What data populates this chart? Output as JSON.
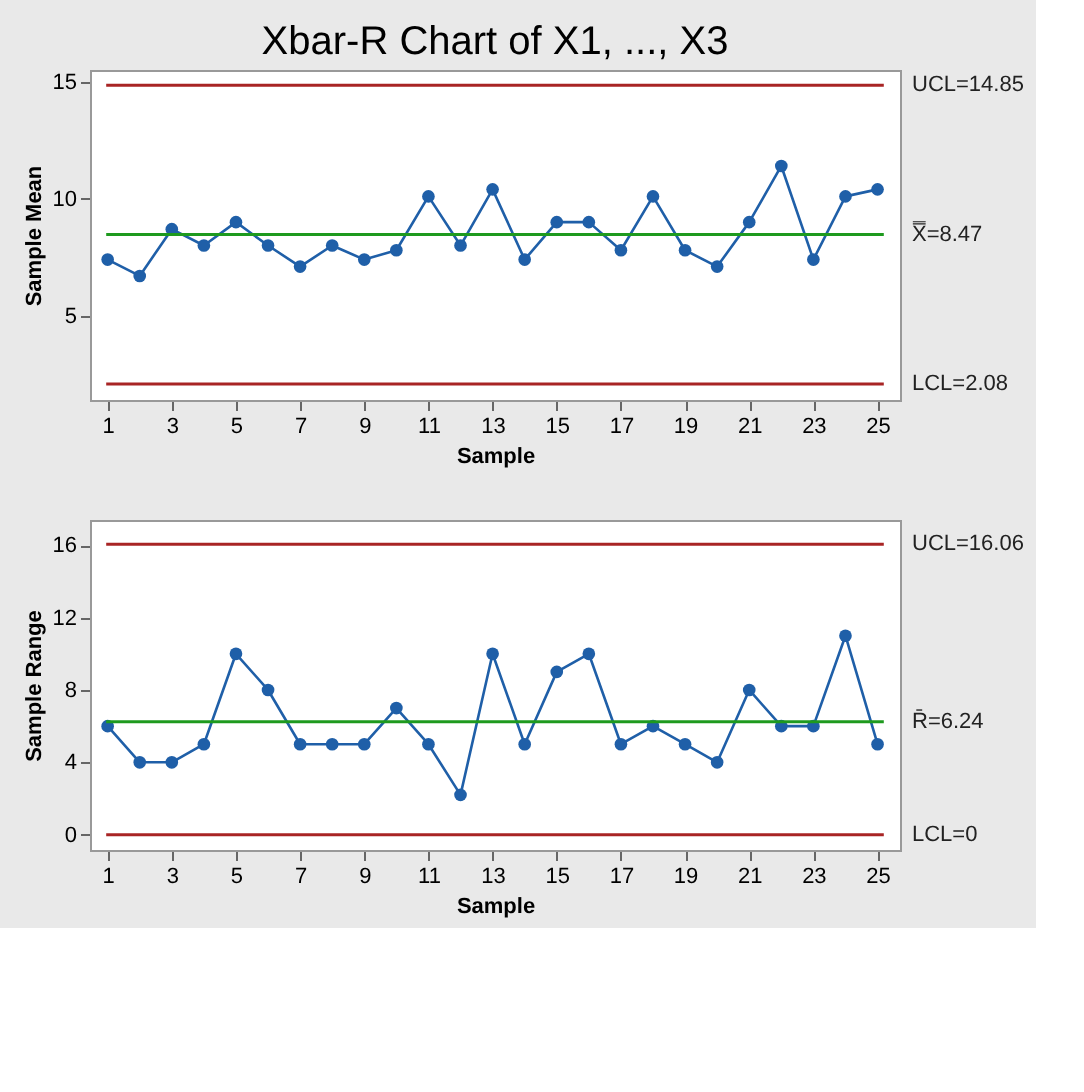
{
  "chart_data": [
    {
      "type": "line",
      "title": "Xbar-R Chart of X1, ..., X3",
      "xlabel": "Sample",
      "ylabel": "Sample Mean",
      "x": [
        1,
        2,
        3,
        4,
        5,
        6,
        7,
        8,
        9,
        10,
        11,
        12,
        13,
        14,
        15,
        16,
        17,
        18,
        19,
        20,
        21,
        22,
        23,
        24,
        25
      ],
      "series": [
        {
          "color": "#1f5fa8",
          "values": [
            7.4,
            6.7,
            8.7,
            8.0,
            9.0,
            8.0,
            7.1,
            8.0,
            7.4,
            7.8,
            10.1,
            8.0,
            10.4,
            7.4,
            9.0,
            9.0,
            7.8,
            10.1,
            7.8,
            7.1,
            9.0,
            11.4,
            7.4,
            10.1,
            10.4
          ]
        }
      ],
      "xlim": [
        0.45,
        25.7
      ],
      "xticks": [
        1,
        3,
        5,
        7,
        9,
        11,
        13,
        15,
        17,
        19,
        21,
        23,
        25
      ],
      "ylim": [
        1.4,
        15.5
      ],
      "yticks": [
        5,
        10,
        15
      ],
      "ref_lines": [
        {
          "axis": "y",
          "value": 14.85,
          "label": "UCL=14.85",
          "color": "#a82424"
        },
        {
          "axis": "y",
          "value": 8.47,
          "label": "X̿=8.47",
          "color": "#1e9a1e"
        },
        {
          "axis": "y",
          "value": 2.08,
          "label": "LCL=2.08",
          "color": "#a82424"
        }
      ],
      "grid": false,
      "marker": "circle",
      "line_style": "solid"
    },
    {
      "type": "line",
      "xlabel": "Sample",
      "ylabel": "Sample Range",
      "x": [
        1,
        2,
        3,
        4,
        5,
        6,
        7,
        8,
        9,
        10,
        11,
        12,
        13,
        14,
        15,
        16,
        17,
        18,
        19,
        20,
        21,
        22,
        23,
        24,
        25
      ],
      "series": [
        {
          "color": "#1f5fa8",
          "values": [
            6,
            4,
            4,
            5,
            10,
            8,
            5,
            5,
            5,
            7,
            5,
            2.2,
            10,
            5,
            9,
            10,
            5,
            6,
            5,
            4,
            8,
            6,
            6,
            11,
            5
          ]
        }
      ],
      "xlim": [
        0.45,
        25.7
      ],
      "xticks": [
        1,
        3,
        5,
        7,
        9,
        11,
        13,
        15,
        17,
        19,
        21,
        23,
        25
      ],
      "ylim": [
        -0.85,
        17.4
      ],
      "yticks": [
        0,
        4,
        8,
        12,
        16
      ],
      "ref_lines": [
        {
          "axis": "y",
          "value": 16.06,
          "label": "UCL=16.06",
          "color": "#a82424"
        },
        {
          "axis": "y",
          "value": 6.24,
          "label": "R̄=6.24",
          "color": "#1e9a1e"
        },
        {
          "axis": "y",
          "value": 0,
          "label": "LCL=0",
          "color": "#a82424"
        }
      ],
      "grid": false,
      "marker": "circle",
      "line_style": "solid"
    }
  ]
}
